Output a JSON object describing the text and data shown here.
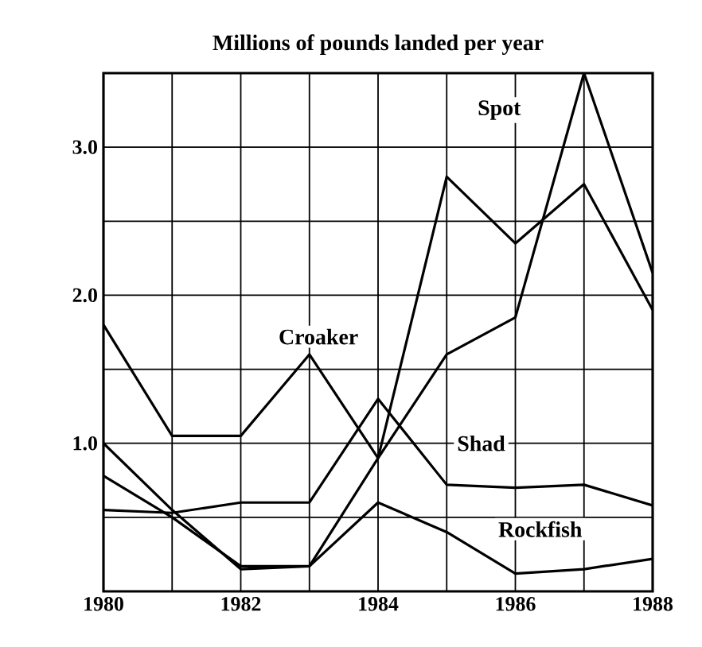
{
  "chart_data": {
    "type": "line",
    "title": "Millions of pounds landed per year",
    "x": [
      1980,
      1981,
      1982,
      1983,
      1984,
      1985,
      1986,
      1987,
      1988
    ],
    "series": [
      {
        "name": "Spot",
        "color": "#000000",
        "values": [
          1.0,
          0.55,
          0.15,
          0.17,
          0.9,
          1.6,
          1.85,
          3.5,
          2.15
        ]
      },
      {
        "name": "Croaker",
        "color": "#000000",
        "values": [
          1.8,
          1.05,
          1.05,
          1.6,
          0.9,
          2.8,
          2.35,
          2.75,
          1.9
        ]
      },
      {
        "name": "Shad",
        "color": "#000000",
        "values": [
          0.55,
          0.53,
          0.6,
          0.6,
          1.3,
          0.72,
          0.7,
          0.72,
          0.58
        ]
      },
      {
        "name": "Rockfish",
        "color": "#000000",
        "values": [
          0.78,
          0.5,
          0.17,
          0.17,
          0.6,
          0.4,
          0.12,
          0.15,
          0.22
        ]
      }
    ],
    "xlim": [
      1980,
      1988
    ],
    "xticks": [
      1980,
      {
        "value": 1981,
        "label": null
      },
      1982,
      {
        "value": 1983,
        "label": null
      },
      1984,
      {
        "value": 1985,
        "label": null
      },
      1986,
      {
        "value": 1987,
        "label": null
      },
      1988
    ],
    "ylim": [
      0,
      3.5
    ],
    "yticks": [
      {
        "value": 0,
        "label": null
      },
      {
        "value": 0.5,
        "label": null
      },
      {
        "value": 1.0,
        "label": "1.0"
      },
      {
        "value": 1.5,
        "label": null
      },
      {
        "value": 2.0,
        "label": "2.0"
      },
      {
        "value": 2.5,
        "label": null
      },
      {
        "value": 3.0,
        "label": "3.0"
      }
    ],
    "grid": true,
    "legend": false,
    "marker": "none",
    "line_style": "solid"
  }
}
